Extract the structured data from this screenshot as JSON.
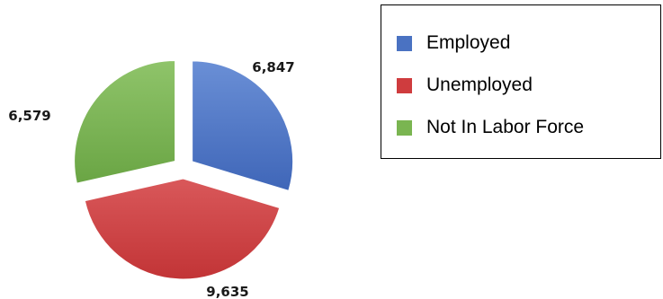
{
  "chart_data": {
    "type": "pie",
    "title": "",
    "exploded": true,
    "slices": [
      {
        "label": "Employed",
        "value": 6847,
        "display": "6,847",
        "color": "#4a72c2"
      },
      {
        "label": "Unemployed",
        "value": 9635,
        "display": "9,635",
        "color": "#cf3c3e"
      },
      {
        "label": "Not In Labor Force",
        "value": 6579,
        "display": "6,579",
        "color": "#7ab551"
      }
    ],
    "legend_position": "right"
  }
}
